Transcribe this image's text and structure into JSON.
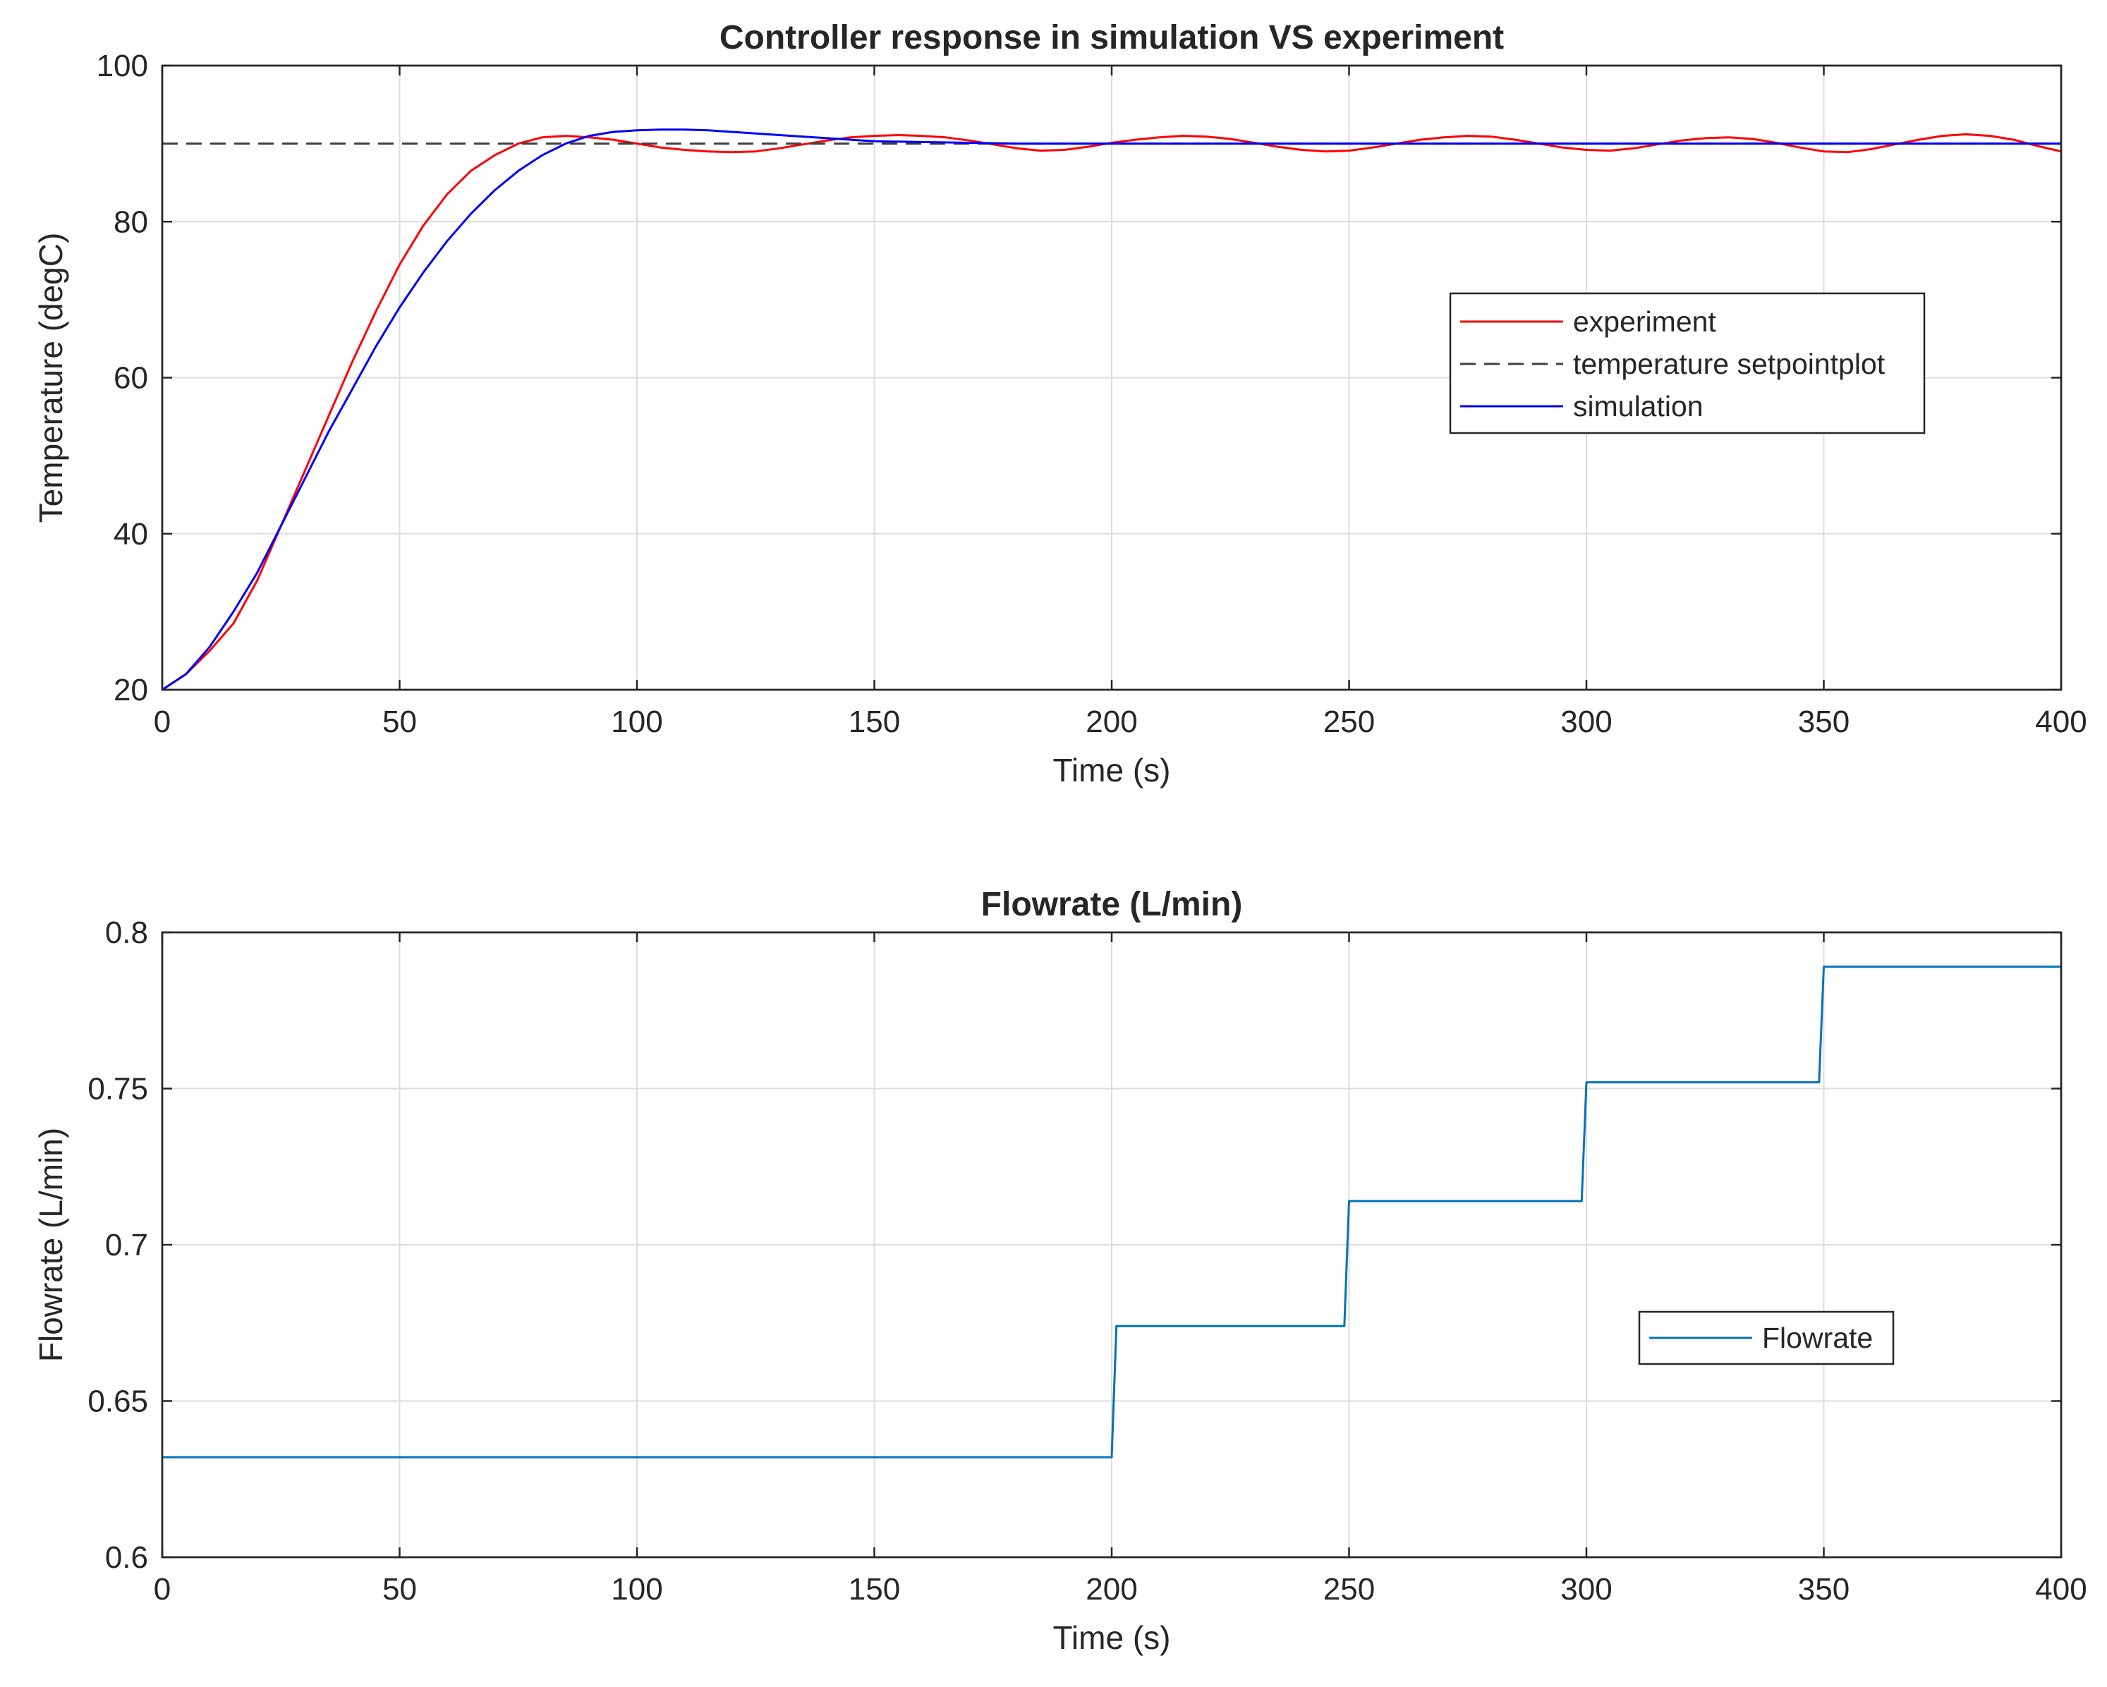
{
  "chart_data": [
    {
      "type": "line",
      "title": "Controller response in simulation VS experiment",
      "xlabel": "Time (s)",
      "ylabel": "Temperature (degC)",
      "xlim": [
        0,
        400
      ],
      "ylim": [
        20,
        100
      ],
      "xticks": [
        0,
        50,
        100,
        150,
        200,
        250,
        300,
        350,
        400
      ],
      "yticks": [
        20,
        40,
        60,
        80,
        100
      ],
      "grid": true,
      "legend_position": "right",
      "series": [
        {
          "name": "experiment",
          "color": "#ff0000",
          "style": "solid",
          "x": [
            0,
            5,
            10,
            15,
            20,
            25,
            30,
            35,
            40,
            45,
            50,
            55,
            60,
            65,
            70,
            75,
            80,
            85,
            90,
            95,
            100,
            105,
            110,
            115,
            120,
            125,
            130,
            135,
            140,
            145,
            150,
            155,
            160,
            165,
            170,
            175,
            180,
            185,
            190,
            195,
            200,
            205,
            210,
            215,
            220,
            225,
            230,
            235,
            240,
            245,
            250,
            255,
            260,
            265,
            270,
            275,
            280,
            285,
            290,
            295,
            300,
            305,
            310,
            315,
            320,
            325,
            330,
            335,
            340,
            345,
            350,
            355,
            360,
            365,
            370,
            375,
            380,
            385,
            390,
            395,
            400
          ],
          "y": [
            20,
            22,
            25,
            28.5,
            34,
            41,
            48,
            55,
            62,
            68.5,
            74.5,
            79.5,
            83.5,
            86.5,
            88.5,
            90,
            90.8,
            91,
            90.8,
            90.5,
            90,
            89.5,
            89.2,
            89,
            88.9,
            89,
            89.4,
            89.9,
            90.4,
            90.8,
            91,
            91.1,
            91,
            90.8,
            90.4,
            89.9,
            89.4,
            89.1,
            89.2,
            89.6,
            90.1,
            90.5,
            90.8,
            91,
            90.9,
            90.6,
            90.1,
            89.6,
            89.2,
            89,
            89.1,
            89.5,
            90,
            90.5,
            90.8,
            91,
            90.9,
            90.5,
            90,
            89.5,
            89.2,
            89.1,
            89.4,
            89.9,
            90.4,
            90.7,
            90.8,
            90.6,
            90.1,
            89.5,
            89,
            88.9,
            89.3,
            89.9,
            90.5,
            91,
            91.2,
            91,
            90.5,
            89.7,
            89
          ]
        },
        {
          "name": "temperature setpointplot",
          "color": "#404040",
          "style": "dashed",
          "x": [
            0,
            400
          ],
          "y": [
            90,
            90
          ]
        },
        {
          "name": "simulation",
          "color": "#0000ff",
          "style": "solid",
          "x": [
            0,
            5,
            10,
            15,
            20,
            25,
            30,
            35,
            40,
            45,
            50,
            55,
            60,
            65,
            70,
            75,
            80,
            85,
            90,
            95,
            100,
            105,
            110,
            115,
            120,
            125,
            130,
            135,
            140,
            145,
            150,
            160,
            170,
            180,
            200,
            250,
            300,
            350,
            400
          ],
          "y": [
            20,
            22,
            25.5,
            30,
            35,
            41,
            47,
            53,
            58.5,
            64,
            69,
            73.5,
            77.5,
            81,
            84,
            86.5,
            88.5,
            90,
            91,
            91.5,
            91.7,
            91.8,
            91.8,
            91.7,
            91.5,
            91.3,
            91.1,
            90.9,
            90.7,
            90.5,
            90.3,
            90.2,
            90.1,
            90,
            90,
            90,
            90,
            90,
            90
          ]
        }
      ]
    },
    {
      "type": "line",
      "title": "Flowrate (L/min)",
      "xlabel": "Time (s)",
      "ylabel": "Flowrate (L/min)",
      "xlim": [
        0,
        400
      ],
      "ylim": [
        0.6,
        0.8
      ],
      "xticks": [
        0,
        50,
        100,
        150,
        200,
        250,
        300,
        350,
        400
      ],
      "yticks": [
        0.6,
        0.65,
        0.7,
        0.75,
        0.8
      ],
      "grid": true,
      "legend_position": "right",
      "series": [
        {
          "name": "Flowrate",
          "color": "#0072bd",
          "style": "solid",
          "x": [
            0,
            200,
            201,
            249,
            250,
            299,
            300,
            349,
            350,
            400
          ],
          "y": [
            0.632,
            0.632,
            0.674,
            0.674,
            0.714,
            0.714,
            0.752,
            0.752,
            0.789,
            0.789
          ]
        }
      ]
    }
  ]
}
